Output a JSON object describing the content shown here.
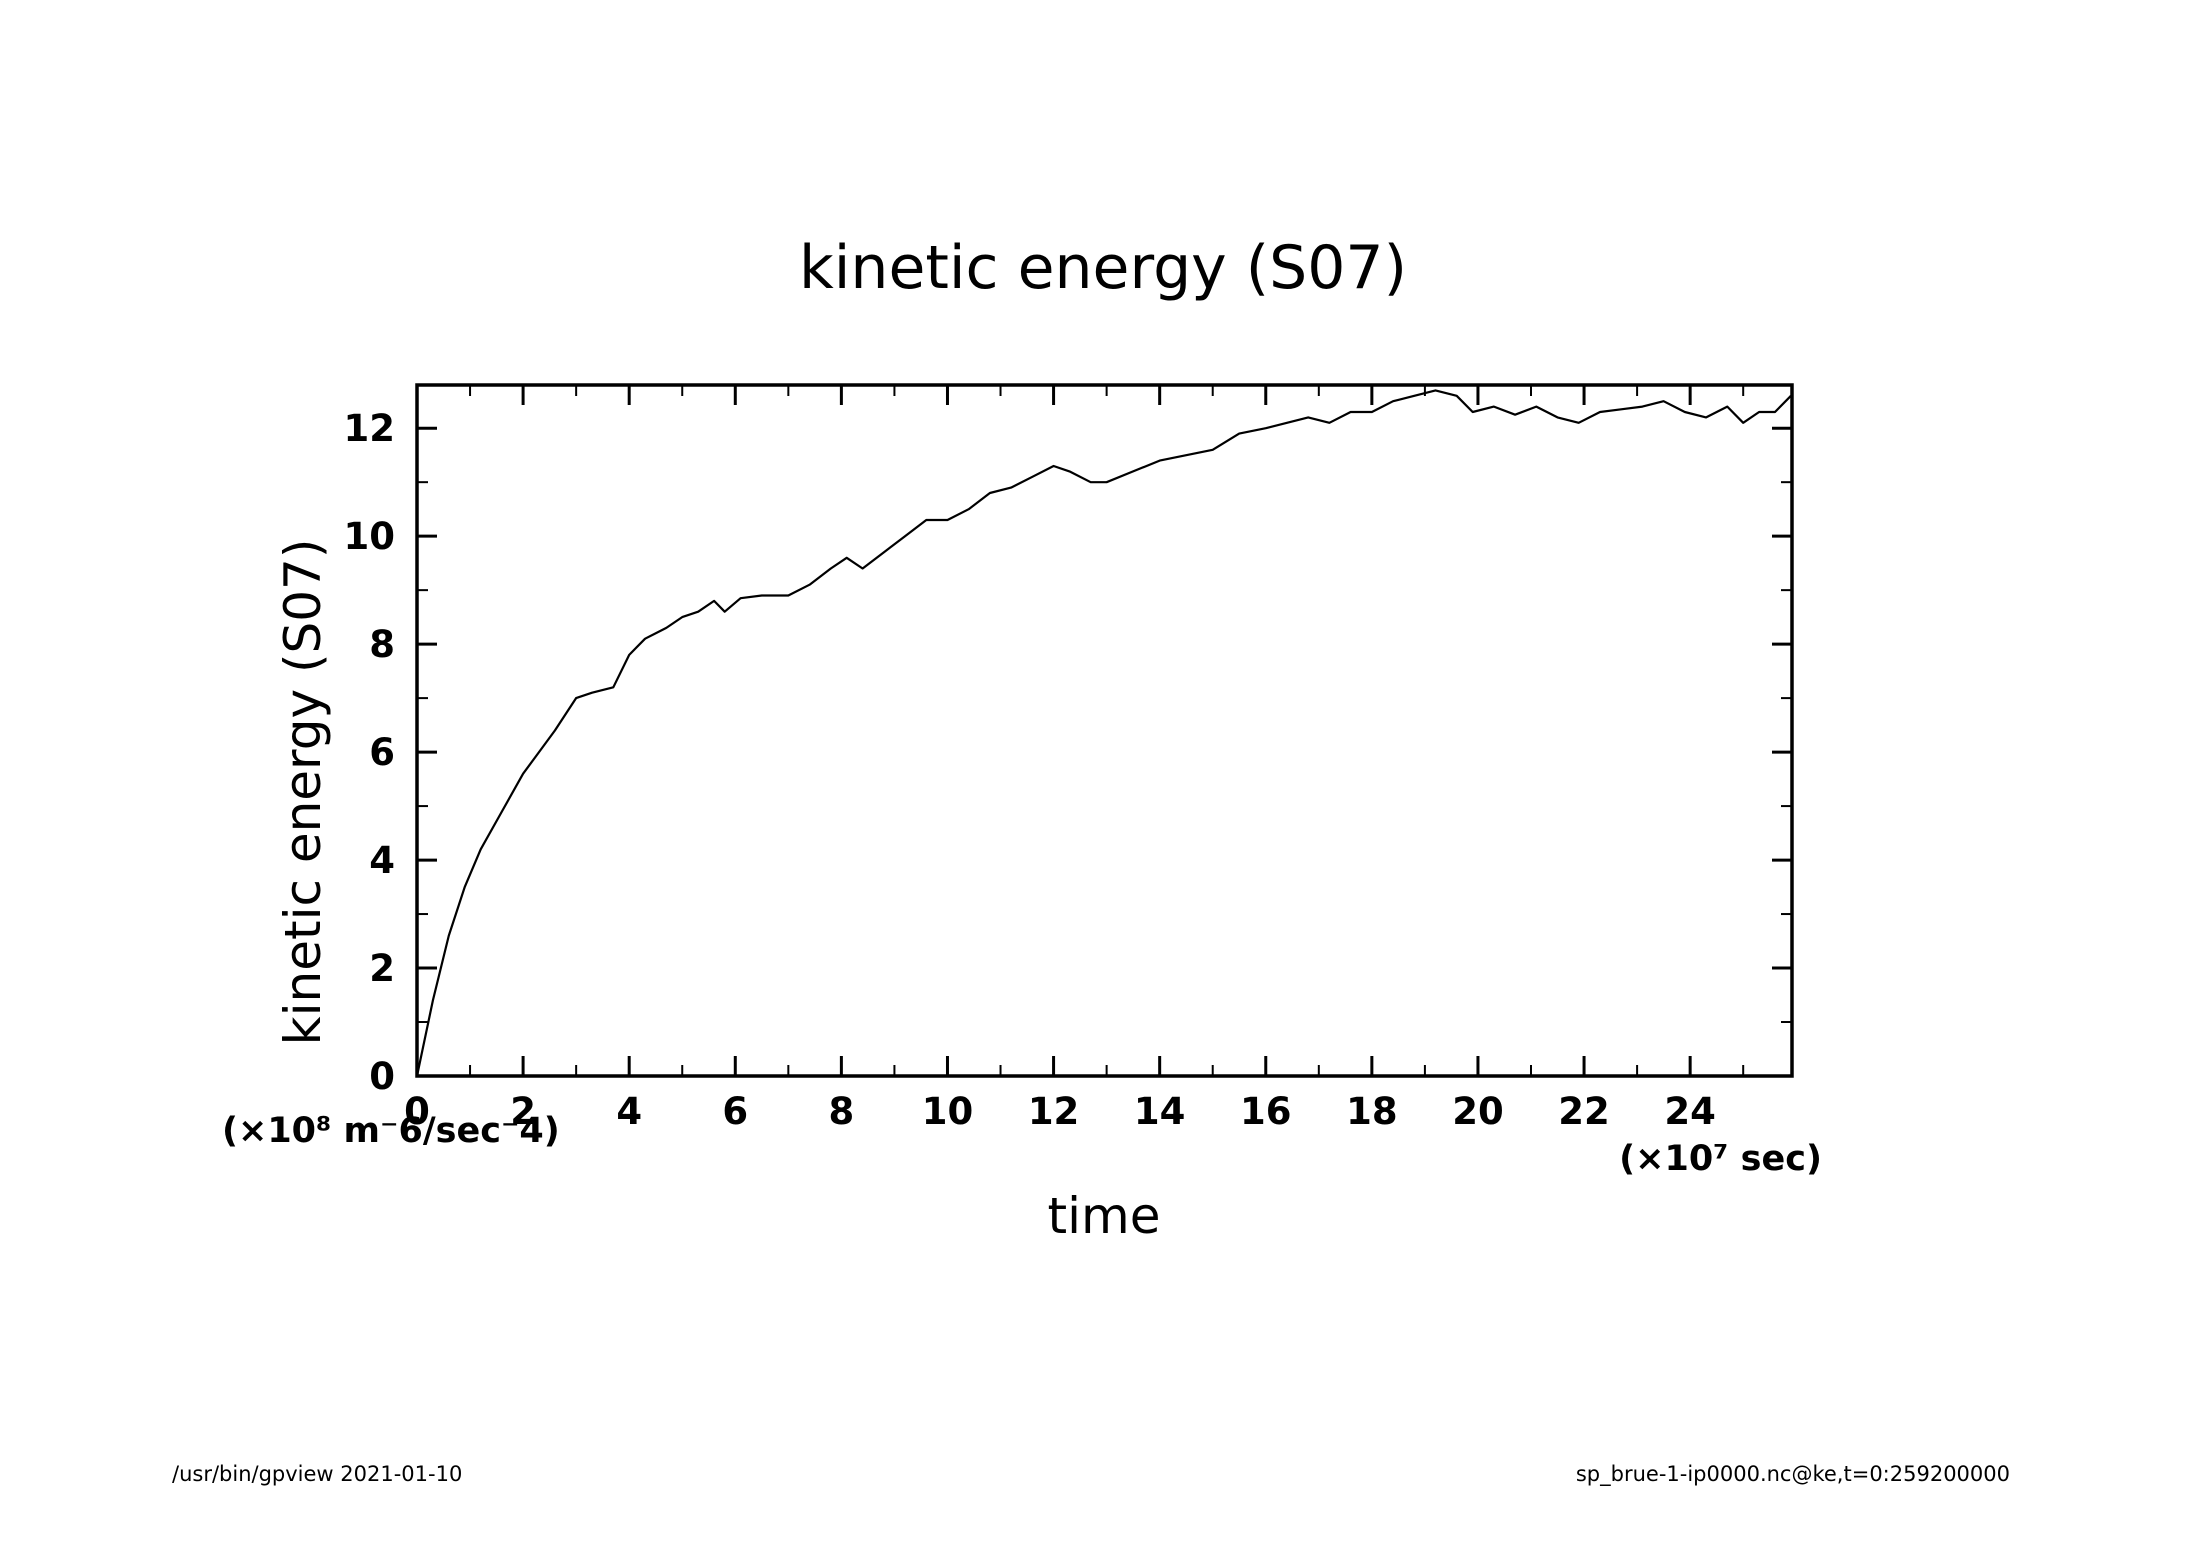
{
  "chart_data": {
    "type": "line",
    "title": "kinetic energy (S07)",
    "xlabel": "time",
    "ylabel": "kinetic energy (S07)",
    "x_unit_label": "(×10⁷ sec)",
    "y_unit_label": "(×10⁸ m⁻6/sec⁻4)",
    "xlim": [
      0,
      25.92
    ],
    "ylim": [
      0,
      12.8
    ],
    "xticks": [
      0,
      2,
      4,
      6,
      8,
      10,
      12,
      14,
      16,
      18,
      20,
      22,
      24
    ],
    "yticks": [
      0,
      2,
      4,
      6,
      8,
      10,
      12
    ],
    "grid": false,
    "series": [
      {
        "x": [
          0,
          0.3,
          0.6,
          0.9,
          1.2,
          1.6,
          2.0,
          2.3,
          2.6,
          3.0,
          3.3,
          3.7,
          4.0,
          4.3,
          4.7,
          5.0,
          5.3,
          5.6,
          5.8,
          6.1,
          6.5,
          7.0,
          7.4,
          7.8,
          8.1,
          8.4,
          8.8,
          9.2,
          9.6,
          10.0,
          10.4,
          10.8,
          11.2,
          11.6,
          12.0,
          12.3,
          12.7,
          13.0,
          13.5,
          14.0,
          14.5,
          15.0,
          15.5,
          16.0,
          16.4,
          16.8,
          17.2,
          17.6,
          18.0,
          18.4,
          18.8,
          19.2,
          19.6,
          19.9,
          20.3,
          20.7,
          21.1,
          21.5,
          21.9,
          22.3,
          22.7,
          23.1,
          23.5,
          23.9,
          24.3,
          24.7,
          25.0,
          25.3,
          25.6,
          25.9
        ],
        "y": [
          0,
          1.4,
          2.6,
          3.5,
          4.2,
          4.9,
          5.6,
          6.0,
          6.4,
          7.0,
          7.1,
          7.2,
          7.8,
          8.1,
          8.3,
          8.5,
          8.6,
          8.8,
          8.6,
          8.85,
          8.9,
          8.9,
          9.1,
          9.4,
          9.6,
          9.4,
          9.7,
          10.0,
          10.3,
          10.3,
          10.5,
          10.8,
          10.9,
          11.1,
          11.3,
          11.2,
          11.0,
          11.0,
          11.2,
          11.4,
          11.5,
          11.6,
          11.9,
          12.0,
          12.1,
          12.2,
          12.1,
          12.3,
          12.3,
          12.5,
          12.6,
          12.7,
          12.6,
          12.3,
          12.4,
          12.25,
          12.4,
          12.2,
          12.1,
          12.3,
          12.35,
          12.4,
          12.5,
          12.3,
          12.2,
          12.4,
          12.1,
          12.3,
          12.3,
          12.6
        ]
      }
    ]
  },
  "footer": {
    "left": "/usr/bin/gpview   2021-01-10",
    "right": "sp_brue-1-ip0000.nc@ke,t=0:259200000"
  }
}
